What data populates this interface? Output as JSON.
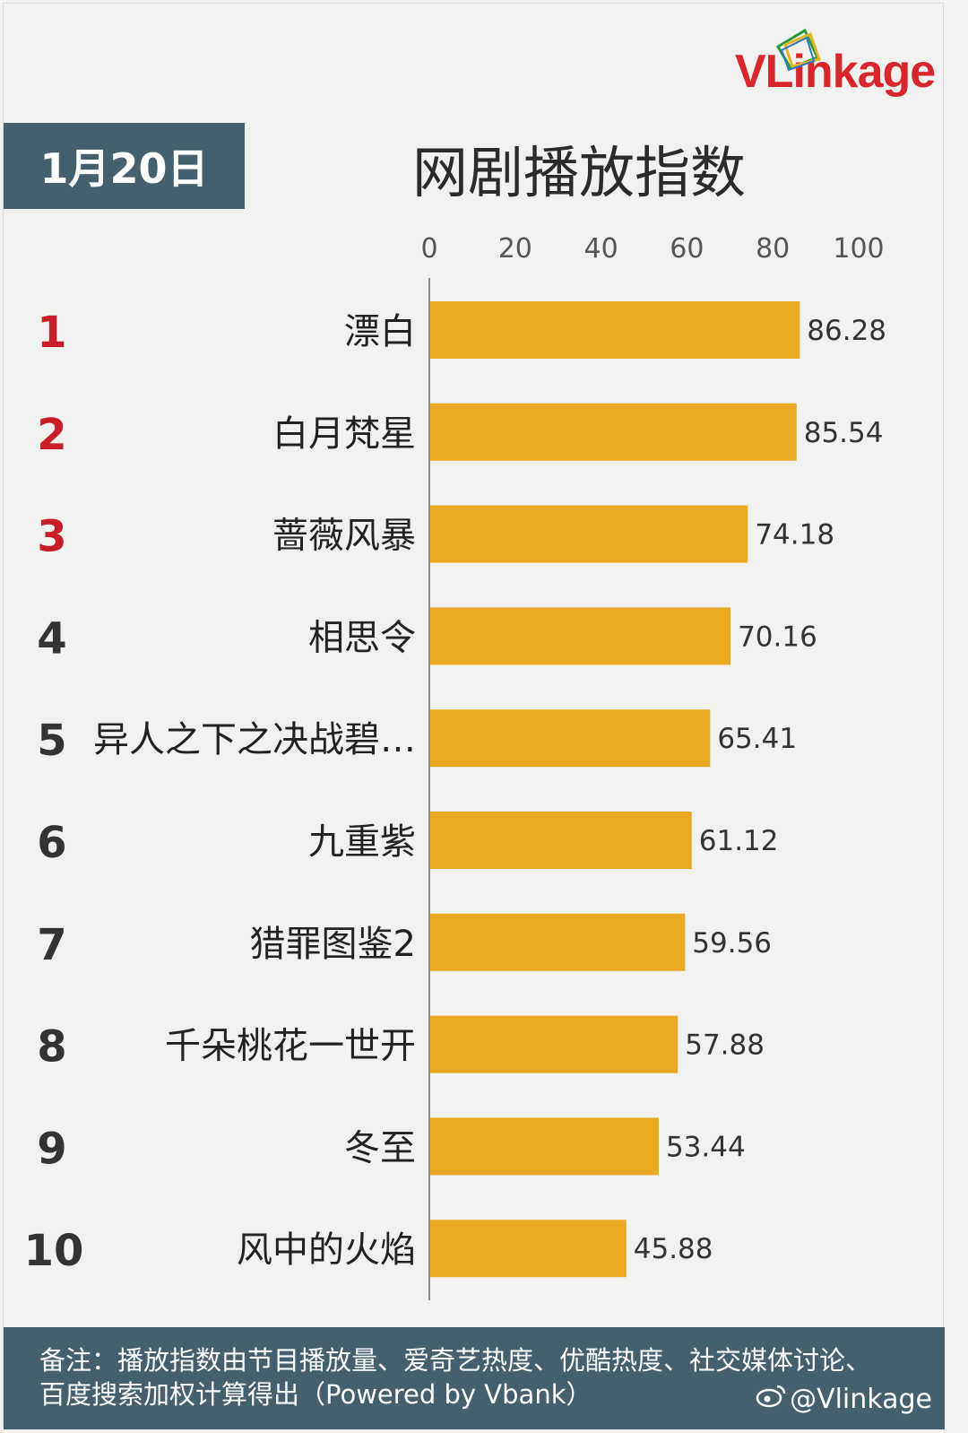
{
  "header": {
    "date": "1月20日",
    "title": "网剧播放指数",
    "logo_text": "VLinkage"
  },
  "footer": {
    "note": "备注：播放指数由节目播放量、爱奇艺热度、优酷热度、社交媒体讨论、百度搜索加权计算得出（Powered by Vbank）",
    "handle": "@Vlinkage"
  },
  "colors": {
    "bar": "#e9a923",
    "rank_top": "#c81e28",
    "rank_other": "#333333",
    "header_bg": "#44606f"
  },
  "chart_data": {
    "type": "bar",
    "orientation": "horizontal",
    "title": "网剧播放指数",
    "ranks": [
      "1",
      "2",
      "3",
      "4",
      "5",
      "6",
      "7",
      "8",
      "9",
      "10"
    ],
    "categories": [
      "漂白",
      "白月梵星",
      "蔷薇风暴",
      "相思令",
      "异人之下之决战碧…",
      "九重紫",
      "猎罪图鉴2",
      "千朵桃花一世开",
      "冬至",
      "风中的火焰"
    ],
    "values": [
      86.28,
      85.54,
      74.18,
      70.16,
      65.41,
      61.12,
      59.56,
      57.88,
      53.44,
      45.88
    ],
    "value_labels": [
      "86.28",
      "85.54",
      "74.18",
      "70.16",
      "65.41",
      "61.12",
      "59.56",
      "57.88",
      "53.44",
      "45.88"
    ],
    "xlim": [
      0,
      100
    ],
    "x_ticks": [
      "0",
      "20",
      "40",
      "60",
      "80",
      "100"
    ],
    "grid": false
  }
}
